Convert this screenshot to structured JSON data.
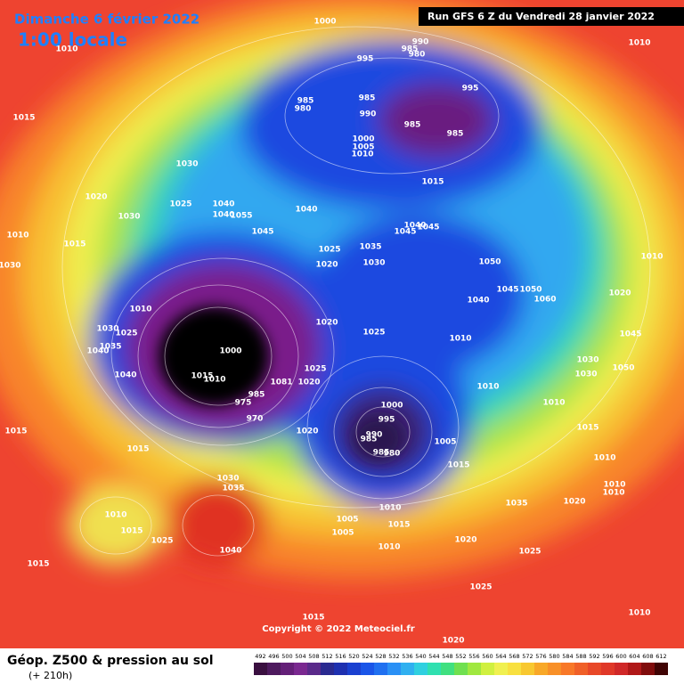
{
  "header": {
    "date": "Dimanche 6 février 2022",
    "time": "1:00 locale",
    "run": "Run GFS 6 Z du Vendredi 28 janvier 2022",
    "copyright": "Copyright © 2022 Meteociel.fr"
  },
  "footer": {
    "title": "Géop. Z500 & pression au sol",
    "lead_time": "(+ 210h)"
  },
  "scale": {
    "values": [
      492,
      496,
      500,
      504,
      508,
      512,
      516,
      520,
      524,
      528,
      532,
      536,
      540,
      544,
      548,
      552,
      556,
      560,
      564,
      568,
      572,
      576,
      580,
      584,
      588,
      592,
      596,
      600,
      604,
      608,
      612
    ],
    "colors": [
      "#3a1040",
      "#4e1a5e",
      "#641f78",
      "#7a2890",
      "#5a2a8a",
      "#2a2a90",
      "#1e30b0",
      "#1a40d0",
      "#1a55e8",
      "#2070f0",
      "#2a90f5",
      "#30b0f0",
      "#30d0e0",
      "#30e0b0",
      "#40e080",
      "#70e050",
      "#a0e840",
      "#d0f040",
      "#f0f050",
      "#f8e040",
      "#f8c830",
      "#f8a828",
      "#f89028",
      "#f87828",
      "#f06028",
      "#e84828",
      "#e03828",
      "#d02828",
      "#b01818",
      "#800c0c",
      "#400404"
    ]
  },
  "isobar_labels": [
    "1000",
    "990",
    "985",
    "980",
    "995",
    "1010",
    "1010",
    "985",
    "980",
    "985",
    "990",
    "995",
    "985",
    "985",
    "1000",
    "1005",
    "1010",
    "1015",
    "1030",
    "1015",
    "1020",
    "1025",
    "1030",
    "1040",
    "1040",
    "1055",
    "1040",
    "1010",
    "1015",
    "1045",
    "1040",
    "1045",
    "1045",
    "1025",
    "1035",
    "1020",
    "1030",
    "1050",
    "1010",
    "1030",
    "1045",
    "1050",
    "1060",
    "1040",
    "1020",
    "1010",
    "1020",
    "1025",
    "1030",
    "1025",
    "1035",
    "1040",
    "1010",
    "1045",
    "1000",
    "1025",
    "1050",
    "1030",
    "1030",
    "1040",
    "1015",
    "1010",
    "1081",
    "1020",
    "1010",
    "985",
    "975",
    "970",
    "1000",
    "995",
    "990",
    "985",
    "1005",
    "980",
    "985",
    "1020",
    "1015",
    "1010",
    "1015",
    "1015",
    "1015",
    "1010",
    "1030",
    "1035",
    "1010",
    "1010",
    "1020",
    "1035",
    "1010",
    "1005",
    "1005",
    "1015",
    "1010",
    "1015",
    "1025",
    "1040",
    "1020",
    "1010",
    "1025",
    "1015",
    "1025",
    "1015",
    "1010",
    "1020"
  ]
}
